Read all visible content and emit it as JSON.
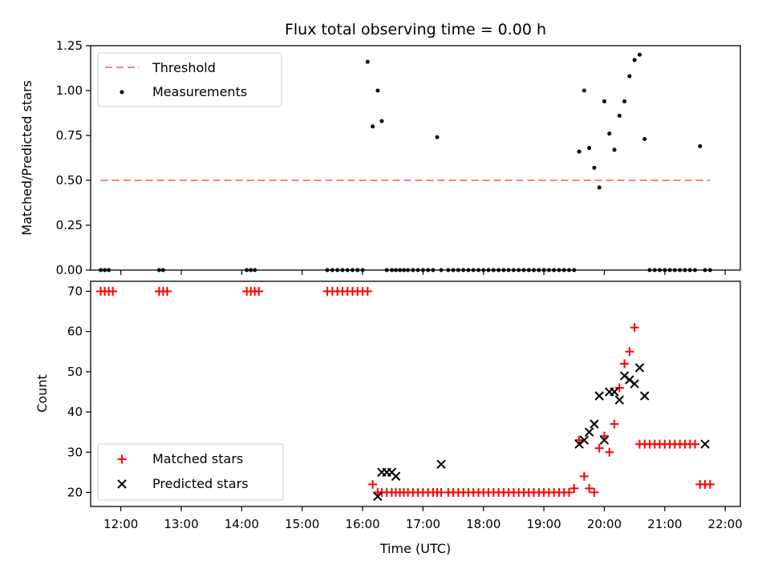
{
  "chart_data": [
    {
      "type": "scatter",
      "title": "Flux total observing time = 0.00 h",
      "xlabel": "",
      "ylabel": "Matched/Predicted stars",
      "xlim": [
        "11:30",
        "22:15"
      ],
      "ylim": [
        0,
        1.25
      ],
      "yticks": [
        "0.00",
        "0.25",
        "0.50",
        "0.75",
        "1.00",
        "1.25"
      ],
      "threshold": {
        "name": "Threshold",
        "value": 0.5,
        "x": [
          "11:40",
          "21:45"
        ],
        "color": "#ff8080"
      },
      "series": [
        {
          "name": "Measurements",
          "color": "#000000",
          "x": [
            "11:40",
            "11:44",
            "11:48",
            "12:38",
            "12:42",
            "14:05",
            "14:09",
            "14:13",
            "15:25",
            "15:30",
            "15:35",
            "15:40",
            "15:45",
            "15:50",
            "15:55",
            "16:00",
            "16:05",
            "16:10",
            "16:15",
            "16:19",
            "16:24",
            "16:29",
            "16:33",
            "16:37",
            "16:41",
            "16:45",
            "16:50",
            "16:55",
            "17:00",
            "17:05",
            "17:10",
            "17:14",
            "17:18",
            "17:25",
            "17:30",
            "17:35",
            "17:40",
            "17:45",
            "17:50",
            "17:55",
            "18:00",
            "18:05",
            "18:10",
            "18:15",
            "18:20",
            "18:25",
            "18:30",
            "18:35",
            "18:40",
            "18:45",
            "18:50",
            "18:55",
            "19:00",
            "19:05",
            "19:10",
            "19:15",
            "19:20",
            "19:25",
            "19:30",
            "19:35",
            "19:40",
            "19:45",
            "19:50",
            "19:55",
            "20:00",
            "20:05",
            "20:10",
            "20:15",
            "20:20",
            "20:25",
            "20:30",
            "20:35",
            "20:40",
            "20:45",
            "20:50",
            "20:55",
            "21:00",
            "21:05",
            "21:10",
            "21:15",
            "21:20",
            "21:25",
            "21:30",
            "21:35",
            "21:40",
            "21:45"
          ],
          "y": [
            0,
            0,
            0,
            0,
            0,
            0,
            0,
            0,
            0,
            0,
            0,
            0,
            0,
            0,
            0,
            0,
            1.16,
            0.8,
            1.0,
            0.83,
            0,
            0,
            0,
            0,
            0,
            0,
            0,
            0,
            0,
            0,
            0,
            0.74,
            0,
            0,
            0,
            0,
            0,
            0,
            0,
            0,
            0,
            0,
            0,
            0,
            0,
            0,
            0,
            0,
            0,
            0,
            0,
            0,
            0,
            0,
            0,
            0,
            0,
            0,
            0,
            0.66,
            1.0,
            0.68,
            0.57,
            0.46,
            0.94,
            0.76,
            0.67,
            0.86,
            0.94,
            1.08,
            1.17,
            1.2,
            0.73,
            0,
            0,
            0,
            0,
            0,
            0,
            0,
            0,
            0,
            0,
            0.69,
            0,
            0
          ]
        }
      ]
    },
    {
      "type": "scatter",
      "title": "",
      "xlabel": "Time (UTC)",
      "ylabel": "Count",
      "xlim": [
        "11:30",
        "22:15"
      ],
      "ylim": [
        16.5,
        72.5
      ],
      "yticks": [
        "20",
        "30",
        "40",
        "50",
        "60",
        "70"
      ],
      "xticks": [
        "12:00",
        "13:00",
        "14:00",
        "15:00",
        "16:00",
        "17:00",
        "18:00",
        "19:00",
        "20:00",
        "21:00",
        "22:00"
      ],
      "series": [
        {
          "name": "Matched stars",
          "marker": "+",
          "color": "#ff0000",
          "x": [
            "11:40",
            "11:44",
            "11:48",
            "11:52",
            "12:38",
            "12:42",
            "12:46",
            "14:05",
            "14:09",
            "14:13",
            "14:17",
            "15:25",
            "15:30",
            "15:35",
            "15:40",
            "15:45",
            "15:50",
            "15:55",
            "16:00",
            "16:05",
            "16:10",
            "16:15",
            "16:19",
            "16:24",
            "16:29",
            "16:33",
            "16:37",
            "16:41",
            "16:45",
            "16:50",
            "16:55",
            "17:00",
            "17:05",
            "17:10",
            "17:14",
            "17:18",
            "17:25",
            "17:30",
            "17:35",
            "17:40",
            "17:45",
            "17:50",
            "17:55",
            "18:00",
            "18:05",
            "18:10",
            "18:15",
            "18:20",
            "18:25",
            "18:30",
            "18:35",
            "18:40",
            "18:45",
            "18:50",
            "18:55",
            "19:00",
            "19:05",
            "19:10",
            "19:15",
            "19:20",
            "19:25",
            "19:30",
            "19:35",
            "19:40",
            "19:45",
            "19:50",
            "19:55",
            "20:00",
            "20:05",
            "20:10",
            "20:15",
            "20:20",
            "20:25",
            "20:30",
            "20:35",
            "20:40",
            "20:45",
            "20:50",
            "20:55",
            "21:00",
            "21:05",
            "21:10",
            "21:15",
            "21:20",
            "21:25",
            "21:30",
            "21:35",
            "21:40",
            "21:45"
          ],
          "y": [
            70,
            70,
            70,
            70,
            70,
            70,
            70,
            70,
            70,
            70,
            70,
            70,
            70,
            70,
            70,
            70,
            70,
            70,
            70,
            70,
            22,
            20,
            20,
            20,
            20,
            20,
            20,
            20,
            20,
            20,
            20,
            20,
            20,
            20,
            20,
            20,
            20,
            20,
            20,
            20,
            20,
            20,
            20,
            20,
            20,
            20,
            20,
            20,
            20,
            20,
            20,
            20,
            20,
            20,
            20,
            20,
            20,
            20,
            20,
            20,
            20,
            21,
            33,
            24,
            21,
            20,
            31,
            34,
            30,
            37,
            46,
            52,
            55,
            61,
            32,
            32,
            32,
            32,
            32,
            32,
            32,
            32,
            32,
            32,
            32,
            32,
            22,
            22,
            22
          ]
        },
        {
          "name": "Predicted stars",
          "marker": "x",
          "color": "#000000",
          "x": [
            "16:15",
            "16:19",
            "16:24",
            "16:29",
            "16:33",
            "17:18",
            "19:35",
            "19:40",
            "19:45",
            "19:50",
            "19:55",
            "20:00",
            "20:05",
            "20:10",
            "20:15",
            "20:20",
            "20:25",
            "20:30",
            "20:35",
            "20:40",
            "21:40"
          ],
          "y": [
            19,
            25,
            25,
            25,
            24,
            27,
            32,
            33,
            35,
            37,
            44,
            33,
            45,
            45,
            43,
            49,
            48,
            47,
            51,
            44,
            32
          ]
        }
      ]
    }
  ]
}
